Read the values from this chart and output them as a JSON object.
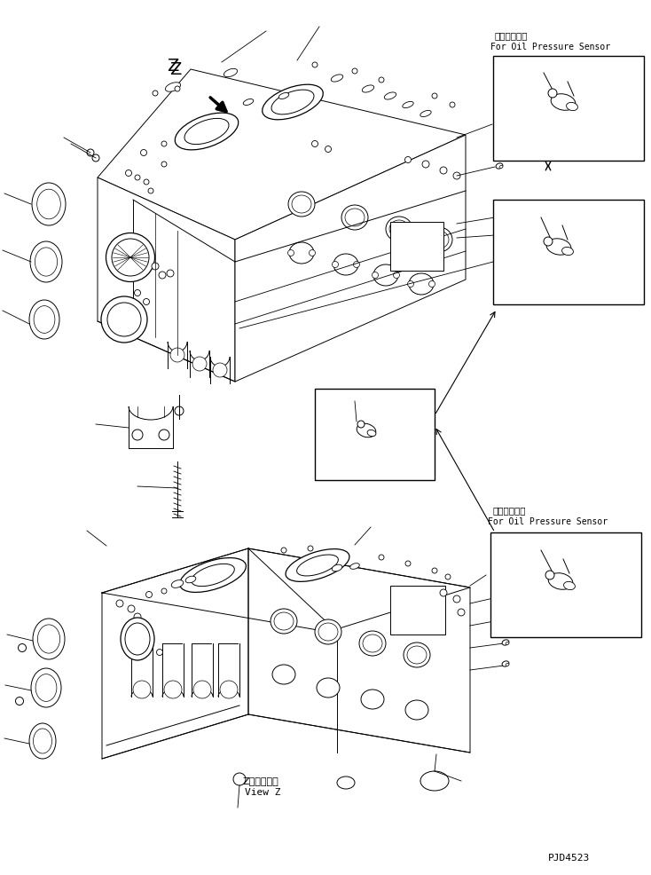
{
  "background_color": "#ffffff",
  "line_color": "#000000",
  "part_number": "PJD4523",
  "japanese_label1": "油圧センサ用",
  "english_label1": "For Oil Pressure Sensor",
  "japanese_label2": "油圧センサ用",
  "english_label2": "For Oil Pressure Sensor",
  "view_label_jp": "Z　視　－－",
  "view_label_en": "View Z",
  "z_label": "Z",
  "fig_width": 7.34,
  "fig_height": 9.86,
  "dpi": 100
}
